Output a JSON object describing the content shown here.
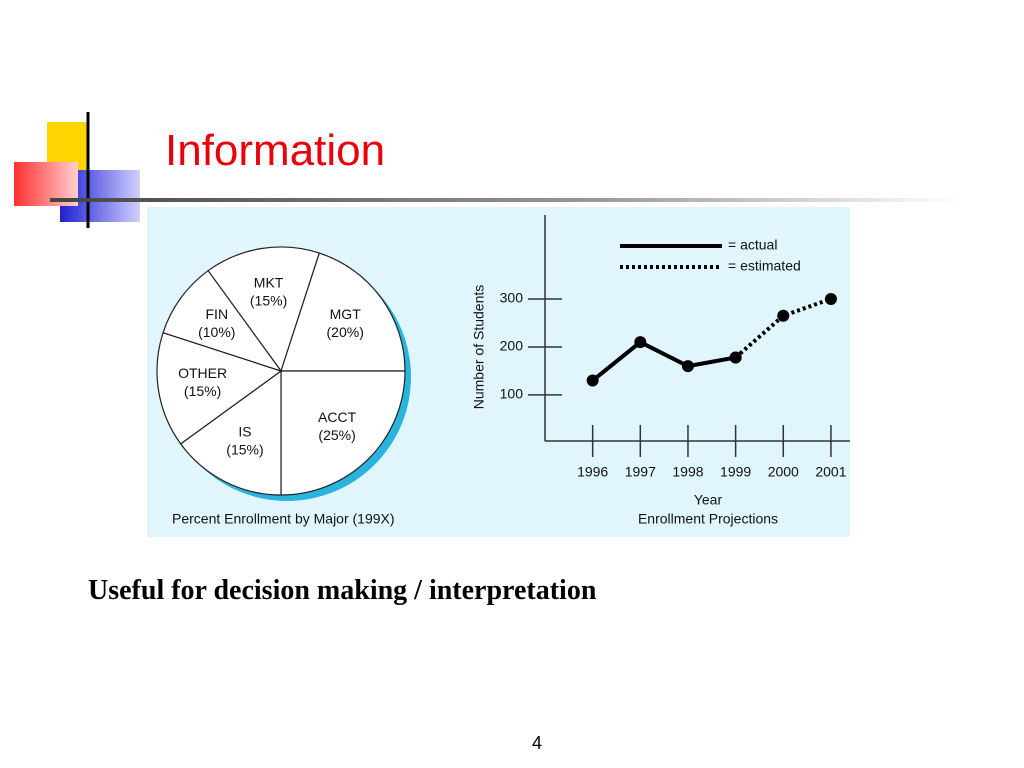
{
  "title": "Information",
  "chart_data": [
    {
      "type": "pie",
      "caption": "Percent Enrollment by Major (199X)",
      "categories": [
        "MKT",
        "MGT",
        "ACCT",
        "IS",
        "OTHER",
        "FIN"
      ],
      "values": [
        15,
        20,
        25,
        15,
        15,
        10
      ],
      "value_labels": [
        "(15%)",
        "(20%)",
        "(25%)",
        "(15%)",
        "(15%)",
        "(10%)"
      ]
    },
    {
      "type": "line",
      "caption": "Enrollment Projections",
      "x_label": "Year",
      "y_label": "Number of Students",
      "x": [
        1996,
        1997,
        1998,
        1999,
        2000,
        2001
      ],
      "xlim": [
        1995,
        2001.4
      ],
      "xticks": [
        1996,
        1997,
        1998,
        1999,
        2000,
        2001
      ],
      "ylim": [
        4,
        475
      ],
      "yticks": [
        100,
        200,
        300
      ],
      "series": [
        {
          "name": "= actual",
          "color": "#000000",
          "dashed": false,
          "values": [
            130,
            210,
            160,
            178,
            null,
            null
          ]
        },
        {
          "name": "= estimated",
          "color": "#000000",
          "dashed": true,
          "values": [
            null,
            null,
            null,
            178,
            265,
            300
          ]
        }
      ]
    }
  ],
  "text": "Useful for decision making / interpretation",
  "page_number": "4"
}
